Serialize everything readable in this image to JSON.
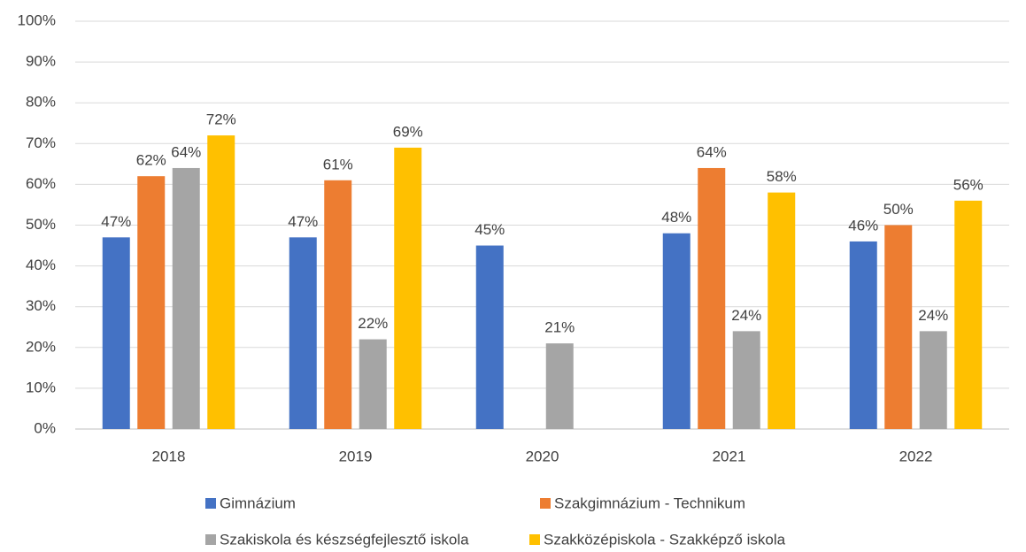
{
  "chart_data": {
    "type": "bar",
    "categories": [
      "2018",
      "2019",
      "2020",
      "2021",
      "2022"
    ],
    "series": [
      {
        "name": "Gimnázium",
        "color": "#4472c4",
        "values": [
          47,
          47,
          45,
          48,
          46
        ],
        "value_labels": [
          "47%",
          "47%",
          "45%",
          "48%",
          "46%"
        ]
      },
      {
        "name": "Szakgimnázium - Technikum",
        "color": "#ed7d31",
        "values": [
          62,
          61,
          null,
          64,
          50
        ],
        "value_labels": [
          "62%",
          "61%",
          null,
          "64%",
          "50%"
        ]
      },
      {
        "name": "Szakiskola és készségfejlesztő iskola",
        "color": "#a5a5a5",
        "values": [
          64,
          22,
          21,
          24,
          24
        ],
        "value_labels": [
          "64%",
          "22%",
          "21%",
          "24%",
          "24%"
        ]
      },
      {
        "name": "Szakközépiskola - Szakképző iskola",
        "color": "#ffc000",
        "values": [
          72,
          69,
          null,
          58,
          56
        ],
        "value_labels": [
          "72%",
          "69%",
          null,
          "58%",
          "56%"
        ]
      }
    ],
    "ylim": [
      0,
      100
    ],
    "yticks": [
      {
        "value": 0,
        "label": "0%"
      },
      {
        "value": 10,
        "label": "10%"
      },
      {
        "value": 20,
        "label": "20%"
      },
      {
        "value": 30,
        "label": "30%"
      },
      {
        "value": 40,
        "label": "40%"
      },
      {
        "value": 50,
        "label": "50%"
      },
      {
        "value": 60,
        "label": "60%"
      },
      {
        "value": 70,
        "label": "70%"
      },
      {
        "value": 80,
        "label": "80%"
      },
      {
        "value": 90,
        "label": "90%"
      },
      {
        "value": 100,
        "label": "100%"
      }
    ],
    "grid": true,
    "legend": "bottom"
  }
}
